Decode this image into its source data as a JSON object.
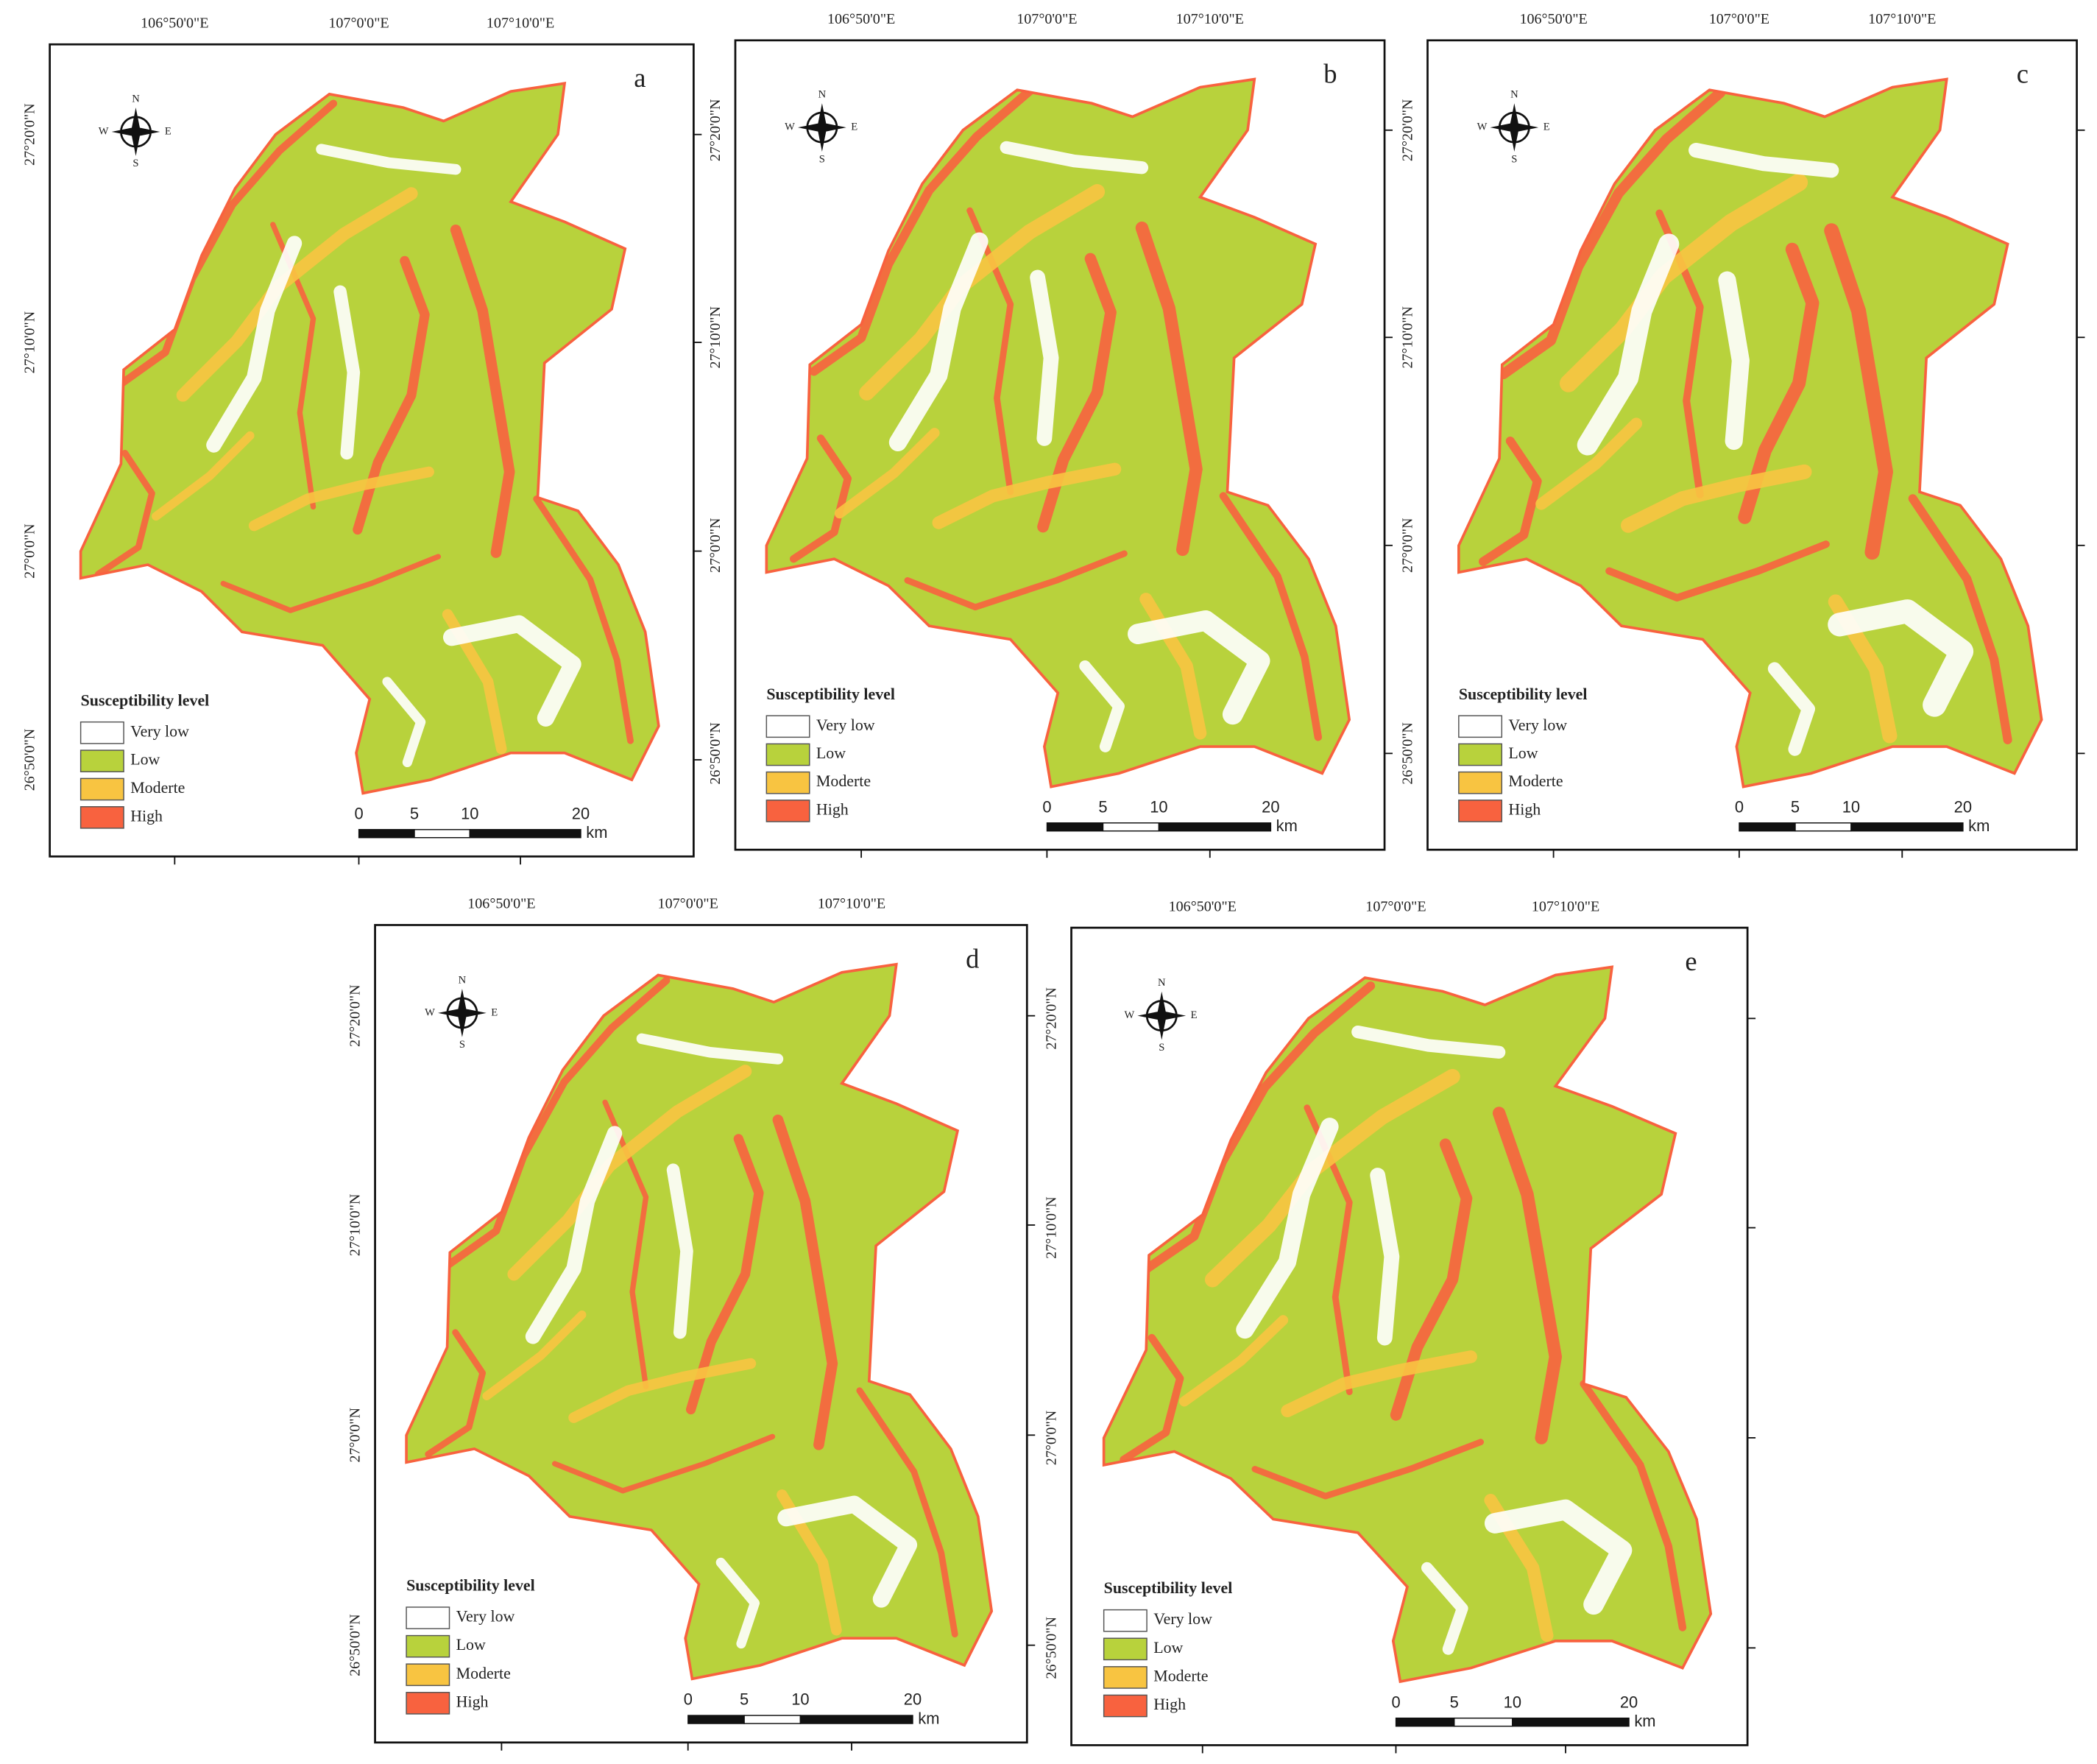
{
  "graticule": {
    "lon": [
      "106°50'0\"E",
      "107°0'0\"E",
      "107°10'0\"E"
    ],
    "lat": [
      "27°20'0\"N",
      "27°10'0\"N",
      "27°0'0\"N",
      "26°50'0\"N"
    ]
  },
  "compass": {
    "n": "N",
    "e": "E",
    "s": "S",
    "w": "W"
  },
  "legend": {
    "title": "Susceptibility level",
    "items": [
      {
        "label": "Very low",
        "color": "#ffffff"
      },
      {
        "label": "Low",
        "color": "#b8d23c"
      },
      {
        "label": "Moderte",
        "color": "#f8c441"
      },
      {
        "label": "High",
        "color": "#f8623f"
      }
    ]
  },
  "scale_bar": {
    "ticks": [
      0,
      5,
      10,
      20
    ],
    "unit": "km"
  },
  "panels": [
    {
      "label": "a"
    },
    {
      "label": "b"
    },
    {
      "label": "c"
    },
    {
      "label": "d"
    },
    {
      "label": "e"
    }
  ]
}
